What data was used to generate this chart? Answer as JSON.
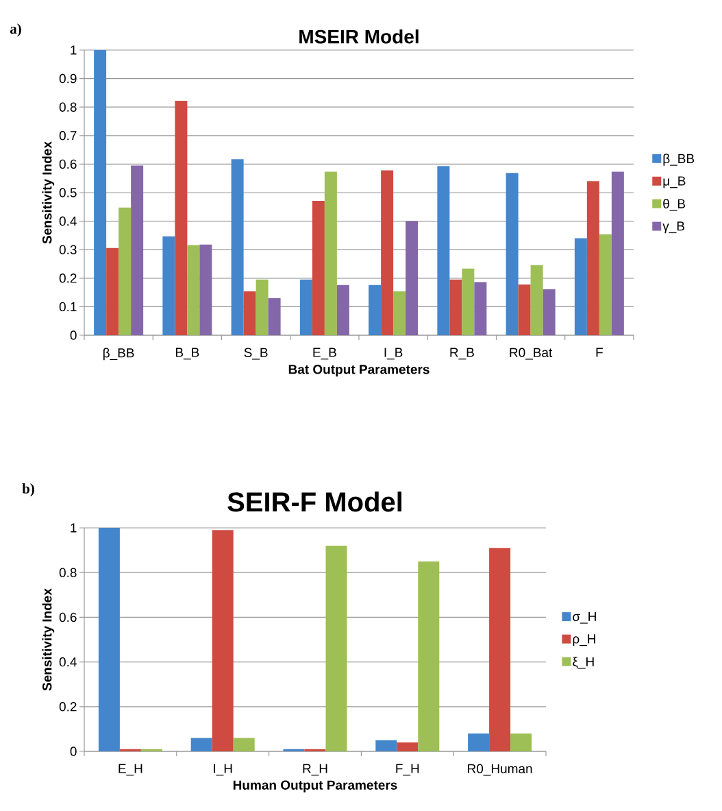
{
  "chart_data": [
    {
      "type": "bar",
      "title": "MSEIR Model",
      "xlabel": "Bat Output Parameters",
      "ylabel": "Sensitivity Index",
      "annotations": [
        "a)"
      ],
      "categories": [
        "β_BB",
        "B_B",
        "S_B",
        "E_B",
        "I_B",
        "R_B",
        "R0_Bat",
        "F"
      ],
      "series": [
        {
          "name": "β_BB",
          "color": "#4486cb",
          "values": [
            1.0,
            0.347,
            0.617,
            0.195,
            0.176,
            0.593,
            0.569,
            0.34
          ]
        },
        {
          "name": "μ_B",
          "color": "#cf4b42",
          "values": [
            0.306,
            0.822,
            0.154,
            0.471,
            0.578,
            0.195,
            0.178,
            0.54
          ]
        },
        {
          "name": "θ_B",
          "color": "#9dbf55",
          "values": [
            0.448,
            0.316,
            0.195,
            0.573,
            0.154,
            0.234,
            0.246,
            0.354
          ]
        },
        {
          "name": "γ_B",
          "color": "#8467a8",
          "values": [
            0.595,
            0.318,
            0.13,
            0.176,
            0.4,
            0.186,
            0.161,
            0.573
          ]
        }
      ],
      "ylim": [
        0,
        1
      ],
      "yticks": [
        0,
        0.1,
        0.2,
        0.3,
        0.4,
        0.5,
        0.6,
        0.7,
        0.8,
        0.9,
        1
      ],
      "grid": "y",
      "legend": "right"
    },
    {
      "type": "bar",
      "title": "SEIR-F Model",
      "xlabel": "Human Output Parameters",
      "ylabel": "Sensitivity Index",
      "annotations": [
        "b)"
      ],
      "categories": [
        "E_H",
        "I_H",
        "R_H",
        "F_H",
        "R0_Human"
      ],
      "series": [
        {
          "name": "σ_H",
          "color": "#4486cb",
          "values": [
            1.0,
            0.06,
            0.01,
            0.05,
            0.08
          ]
        },
        {
          "name": "ρ_H",
          "color": "#cf4b42",
          "values": [
            0.01,
            0.99,
            0.01,
            0.04,
            0.91
          ]
        },
        {
          "name": "ξ_H",
          "color": "#9dbf55",
          "values": [
            0.01,
            0.06,
            0.92,
            0.85,
            0.08
          ]
        }
      ],
      "ylim": [
        0,
        1
      ],
      "yticks": [
        0,
        0.2,
        0.4,
        0.6,
        0.8,
        1
      ],
      "grid": "y",
      "legend": "right"
    }
  ]
}
